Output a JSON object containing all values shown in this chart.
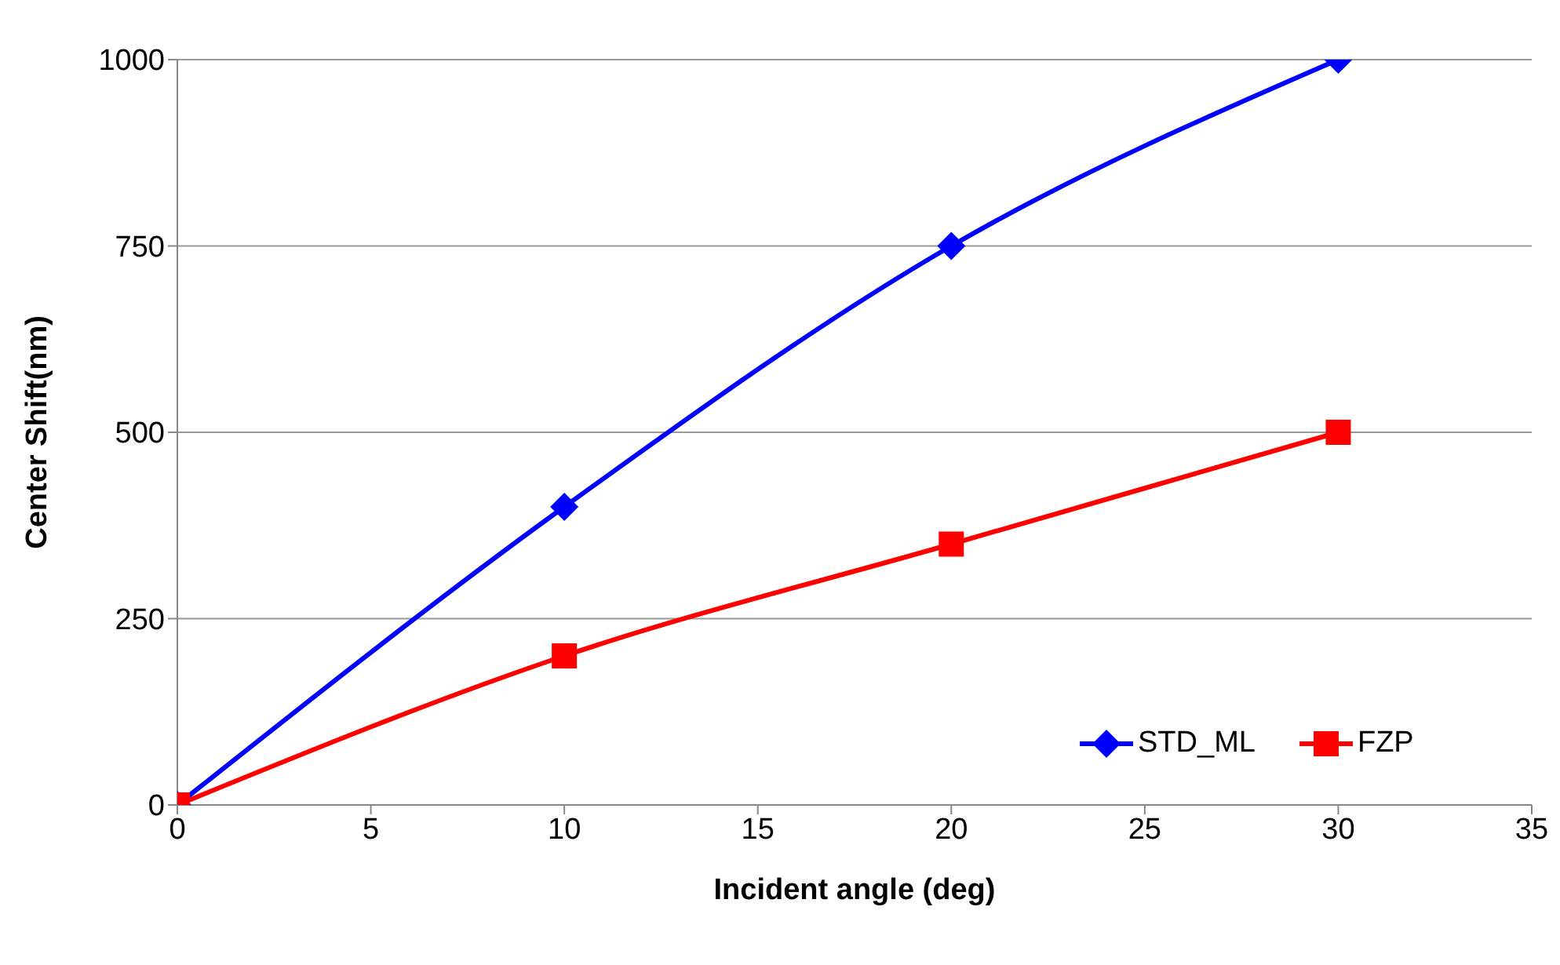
{
  "chart_data": {
    "type": "line",
    "xlabel": "Incident angle (deg)",
    "ylabel": "Center Shift(nm)",
    "x": [
      0,
      10,
      20,
      30
    ],
    "series": [
      {
        "name": "STD_ML",
        "color": "#0000ff",
        "marker": "diamond",
        "values": [
          0,
          400,
          750,
          1000
        ]
      },
      {
        "name": "FZP",
        "color": "#ff0000",
        "marker": "square",
        "values": [
          0,
          200,
          350,
          500
        ]
      }
    ],
    "xlim": [
      0,
      35
    ],
    "xticks": [
      0,
      5,
      10,
      15,
      20,
      25,
      30,
      35
    ],
    "ylim": [
      0,
      1000
    ],
    "yticks": [
      0,
      250,
      500,
      750,
      1000
    ],
    "grid": "y",
    "legend": "bottom right"
  }
}
